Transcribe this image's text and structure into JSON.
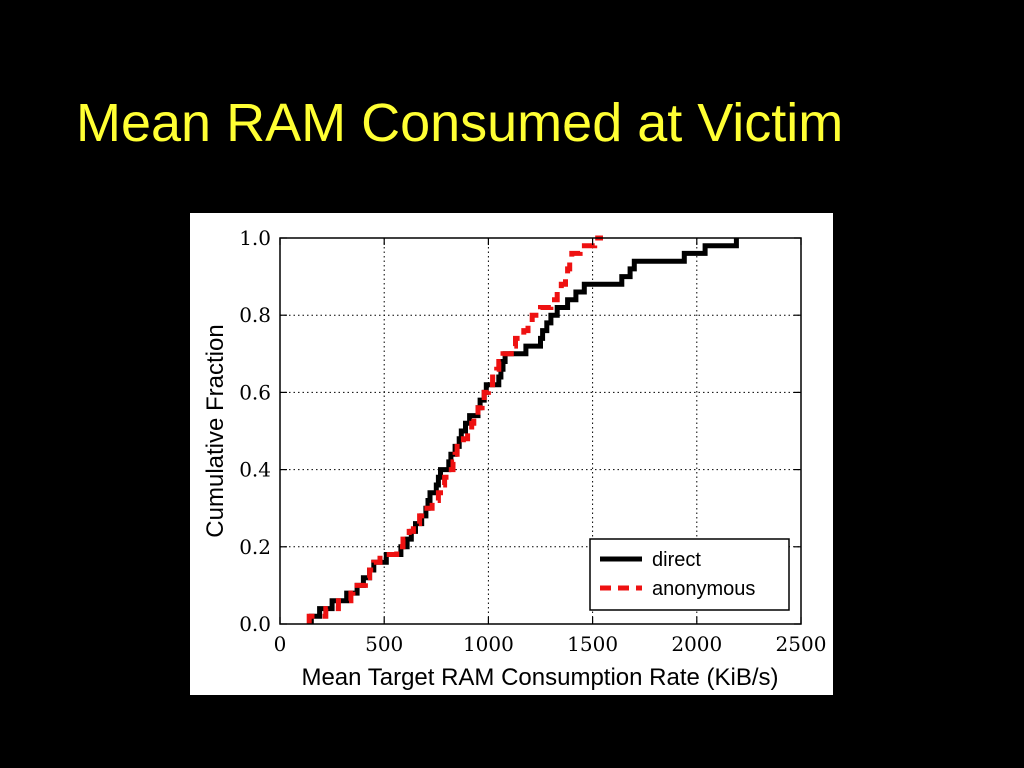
{
  "slide": {
    "title": "Mean RAM Consumed at Victim",
    "background_color": "#000000",
    "title_color": "#ffff33"
  },
  "chart_data": {
    "type": "line",
    "title": "",
    "xlabel": "Mean Target RAM Consumption Rate (KiB/s)",
    "ylabel": "Cumulative Fraction",
    "xlim": [
      0,
      2500
    ],
    "ylim": [
      0,
      1
    ],
    "x_ticks": [
      0,
      500,
      1000,
      1500,
      2000,
      2500
    ],
    "x_tick_labels": [
      "0",
      "500",
      "1000",
      "1500",
      "2000",
      "2500"
    ],
    "y_ticks": [
      0,
      0.2,
      0.4,
      0.6,
      0.8,
      1.0
    ],
    "y_tick_labels": [
      "0.0",
      "0.2",
      "0.4",
      "0.6",
      "0.8",
      "1.0"
    ],
    "grid": true,
    "legend": "lower-right",
    "series": [
      {
        "name": "direct",
        "color": "#000000",
        "dash": "solid",
        "points": [
          [
            150,
            0.0
          ],
          [
            150,
            0.02
          ],
          [
            190,
            0.02
          ],
          [
            190,
            0.04
          ],
          [
            250,
            0.04
          ],
          [
            250,
            0.06
          ],
          [
            320,
            0.06
          ],
          [
            320,
            0.08
          ],
          [
            370,
            0.08
          ],
          [
            370,
            0.1
          ],
          [
            400,
            0.1
          ],
          [
            400,
            0.12
          ],
          [
            430,
            0.12
          ],
          [
            430,
            0.14
          ],
          [
            450,
            0.14
          ],
          [
            450,
            0.16
          ],
          [
            510,
            0.16
          ],
          [
            510,
            0.18
          ],
          [
            580,
            0.18
          ],
          [
            580,
            0.2
          ],
          [
            610,
            0.2
          ],
          [
            610,
            0.22
          ],
          [
            630,
            0.22
          ],
          [
            630,
            0.24
          ],
          [
            650,
            0.24
          ],
          [
            650,
            0.26
          ],
          [
            680,
            0.26
          ],
          [
            680,
            0.28
          ],
          [
            700,
            0.28
          ],
          [
            700,
            0.3
          ],
          [
            710,
            0.3
          ],
          [
            710,
            0.32
          ],
          [
            720,
            0.32
          ],
          [
            720,
            0.34
          ],
          [
            750,
            0.34
          ],
          [
            750,
            0.36
          ],
          [
            760,
            0.36
          ],
          [
            760,
            0.38
          ],
          [
            770,
            0.38
          ],
          [
            770,
            0.4
          ],
          [
            810,
            0.4
          ],
          [
            810,
            0.42
          ],
          [
            820,
            0.42
          ],
          [
            820,
            0.44
          ],
          [
            840,
            0.44
          ],
          [
            840,
            0.46
          ],
          [
            860,
            0.46
          ],
          [
            860,
            0.48
          ],
          [
            870,
            0.48
          ],
          [
            870,
            0.5
          ],
          [
            890,
            0.5
          ],
          [
            890,
            0.52
          ],
          [
            910,
            0.52
          ],
          [
            910,
            0.54
          ],
          [
            950,
            0.54
          ],
          [
            950,
            0.56
          ],
          [
            960,
            0.56
          ],
          [
            960,
            0.58
          ],
          [
            980,
            0.58
          ],
          [
            980,
            0.6
          ],
          [
            990,
            0.6
          ],
          [
            990,
            0.62
          ],
          [
            1050,
            0.62
          ],
          [
            1050,
            0.64
          ],
          [
            1060,
            0.64
          ],
          [
            1060,
            0.66
          ],
          [
            1070,
            0.66
          ],
          [
            1070,
            0.68
          ],
          [
            1080,
            0.68
          ],
          [
            1080,
            0.7
          ],
          [
            1180,
            0.7
          ],
          [
            1180,
            0.72
          ],
          [
            1250,
            0.72
          ],
          [
            1250,
            0.74
          ],
          [
            1260,
            0.74
          ],
          [
            1260,
            0.76
          ],
          [
            1280,
            0.76
          ],
          [
            1280,
            0.78
          ],
          [
            1300,
            0.78
          ],
          [
            1300,
            0.8
          ],
          [
            1330,
            0.8
          ],
          [
            1330,
            0.82
          ],
          [
            1380,
            0.82
          ],
          [
            1380,
            0.84
          ],
          [
            1420,
            0.84
          ],
          [
            1420,
            0.86
          ],
          [
            1460,
            0.86
          ],
          [
            1460,
            0.88
          ],
          [
            1640,
            0.88
          ],
          [
            1640,
            0.9
          ],
          [
            1680,
            0.9
          ],
          [
            1680,
            0.92
          ],
          [
            1700,
            0.92
          ],
          [
            1700,
            0.94
          ],
          [
            1940,
            0.94
          ],
          [
            1940,
            0.96
          ],
          [
            2040,
            0.96
          ],
          [
            2040,
            0.98
          ],
          [
            2190,
            0.98
          ],
          [
            2190,
            1.0
          ]
        ]
      },
      {
        "name": "anonymous",
        "color": "#ee1111",
        "dash": "dashed",
        "points": [
          [
            140,
            0.0
          ],
          [
            140,
            0.02
          ],
          [
            220,
            0.02
          ],
          [
            220,
            0.04
          ],
          [
            280,
            0.04
          ],
          [
            280,
            0.06
          ],
          [
            340,
            0.06
          ],
          [
            340,
            0.08
          ],
          [
            350,
            0.08
          ],
          [
            350,
            0.1
          ],
          [
            410,
            0.1
          ],
          [
            410,
            0.12
          ],
          [
            430,
            0.12
          ],
          [
            430,
            0.14
          ],
          [
            450,
            0.14
          ],
          [
            450,
            0.16
          ],
          [
            480,
            0.16
          ],
          [
            480,
            0.18
          ],
          [
            560,
            0.18
          ],
          [
            560,
            0.2
          ],
          [
            590,
            0.2
          ],
          [
            590,
            0.22
          ],
          [
            620,
            0.22
          ],
          [
            620,
            0.24
          ],
          [
            640,
            0.24
          ],
          [
            640,
            0.26
          ],
          [
            670,
            0.26
          ],
          [
            670,
            0.28
          ],
          [
            680,
            0.28
          ],
          [
            680,
            0.3
          ],
          [
            730,
            0.3
          ],
          [
            730,
            0.32
          ],
          [
            760,
            0.32
          ],
          [
            760,
            0.34
          ],
          [
            770,
            0.34
          ],
          [
            770,
            0.36
          ],
          [
            790,
            0.36
          ],
          [
            790,
            0.38
          ],
          [
            810,
            0.38
          ],
          [
            810,
            0.4
          ],
          [
            830,
            0.4
          ],
          [
            830,
            0.42
          ],
          [
            840,
            0.42
          ],
          [
            840,
            0.44
          ],
          [
            850,
            0.44
          ],
          [
            850,
            0.46
          ],
          [
            880,
            0.46
          ],
          [
            880,
            0.48
          ],
          [
            900,
            0.48
          ],
          [
            900,
            0.5
          ],
          [
            920,
            0.5
          ],
          [
            920,
            0.52
          ],
          [
            930,
            0.52
          ],
          [
            930,
            0.54
          ],
          [
            950,
            0.54
          ],
          [
            950,
            0.56
          ],
          [
            970,
            0.56
          ],
          [
            970,
            0.58
          ],
          [
            980,
            0.58
          ],
          [
            980,
            0.6
          ],
          [
            1000,
            0.6
          ],
          [
            1000,
            0.62
          ],
          [
            1020,
            0.62
          ],
          [
            1020,
            0.64
          ],
          [
            1040,
            0.64
          ],
          [
            1040,
            0.66
          ],
          [
            1050,
            0.66
          ],
          [
            1050,
            0.68
          ],
          [
            1070,
            0.68
          ],
          [
            1070,
            0.7
          ],
          [
            1110,
            0.7
          ],
          [
            1110,
            0.72
          ],
          [
            1130,
            0.72
          ],
          [
            1130,
            0.74
          ],
          [
            1170,
            0.74
          ],
          [
            1170,
            0.76
          ],
          [
            1190,
            0.76
          ],
          [
            1190,
            0.78
          ],
          [
            1210,
            0.78
          ],
          [
            1210,
            0.8
          ],
          [
            1250,
            0.8
          ],
          [
            1250,
            0.82
          ],
          [
            1300,
            0.82
          ],
          [
            1300,
            0.84
          ],
          [
            1330,
            0.84
          ],
          [
            1330,
            0.86
          ],
          [
            1350,
            0.86
          ],
          [
            1350,
            0.88
          ],
          [
            1370,
            0.88
          ],
          [
            1370,
            0.9
          ],
          [
            1380,
            0.9
          ],
          [
            1380,
            0.92
          ],
          [
            1390,
            0.92
          ],
          [
            1390,
            0.94
          ],
          [
            1400,
            0.94
          ],
          [
            1400,
            0.96
          ],
          [
            1440,
            0.96
          ],
          [
            1440,
            0.98
          ],
          [
            1510,
            0.98
          ],
          [
            1510,
            1.0
          ],
          [
            1550,
            1.0
          ]
        ]
      }
    ]
  }
}
